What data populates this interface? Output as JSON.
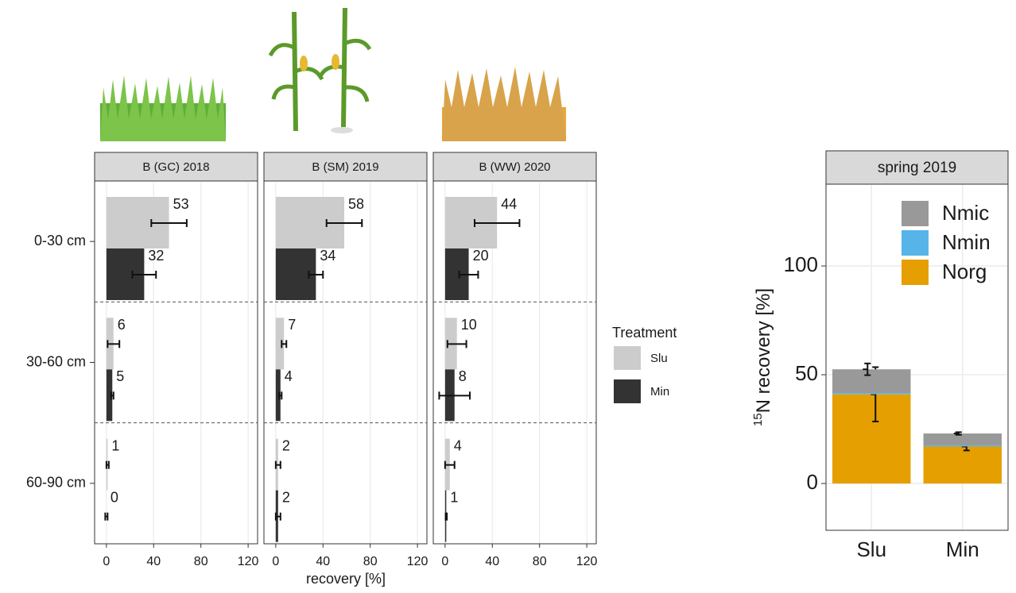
{
  "chart_data": [
    {
      "type": "facet_hbar",
      "facets": [
        "B (GC) 2018",
        "B (SM) 2019",
        "B (WW) 2020"
      ],
      "categories": [
        "0-30 cm",
        "30-60 cm",
        "60-90 cm"
      ],
      "x_label": "recovery [%]",
      "legend_title": "Treatment",
      "xlim": [
        -10,
        128
      ],
      "xticks": [
        0,
        40,
        80,
        120
      ],
      "grid": true,
      "series": [
        {
          "name": "Slu",
          "color": "#cccccc",
          "values": [
            [
              53,
              6,
              1
            ],
            [
              58,
              7,
              2
            ],
            [
              44,
              10,
              4
            ]
          ],
          "errors": [
            [
              15,
              5,
              1
            ],
            [
              15,
              2,
              2
            ],
            [
              19,
              8,
              4
            ]
          ]
        },
        {
          "name": "Min",
          "color": "#333333",
          "values": [
            [
              32,
              5,
              0
            ],
            [
              34,
              4,
              2
            ],
            [
              20,
              8,
              1
            ]
          ],
          "errors": [
            [
              10,
              1,
              1
            ],
            [
              6,
              1,
              2
            ],
            [
              8,
              13,
              0.5
            ]
          ]
        }
      ]
    },
    {
      "type": "stacked_bar",
      "title": "spring 2019",
      "categories": [
        "Slu",
        "Min"
      ],
      "y_label_prefix": "15",
      "y_label": "N recovery [%]",
      "ylim": [
        -21.5,
        137.6
      ],
      "yticks": [
        0,
        50,
        100
      ],
      "grid": true,
      "series": [
        {
          "name": "Norg",
          "color": "#e69f00",
          "values": [
            41,
            17
          ],
          "errors": [
            12.5,
            1.8
          ]
        },
        {
          "name": "Nmin",
          "color": "#56b4e9",
          "values": [
            0.5,
            0.5
          ]
        },
        {
          "name": "Nmic",
          "color": "#999999",
          "values": [
            11,
            5.5
          ],
          "errors": [
            2.7,
            0.6
          ]
        }
      ]
    }
  ]
}
